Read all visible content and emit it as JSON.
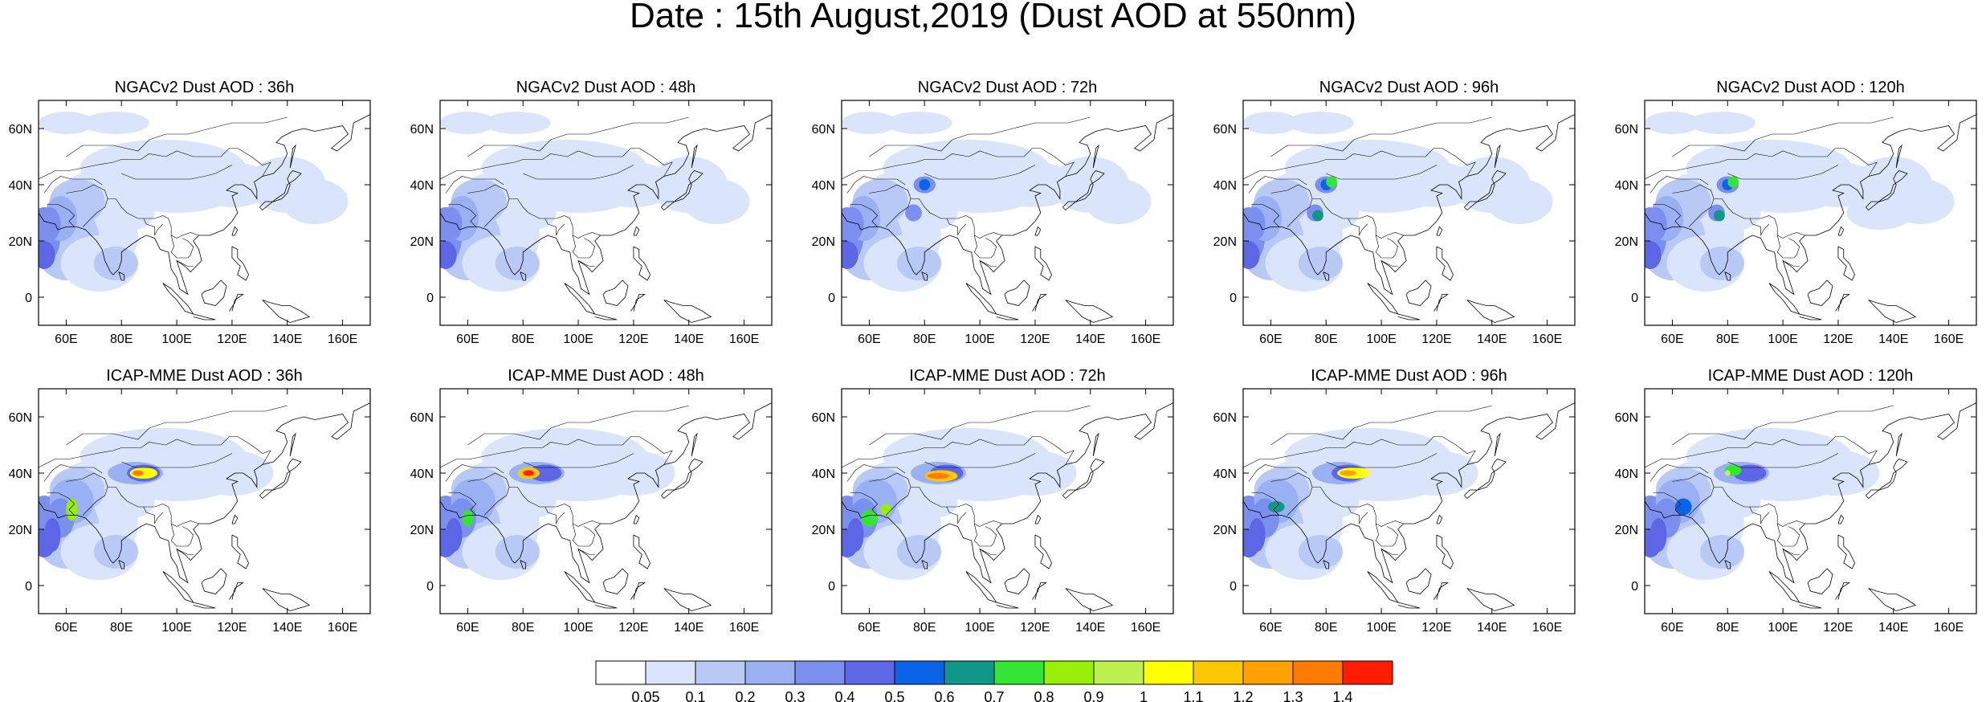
{
  "title": "Date : 15th August,2019 (Dust AOD at 550nm)",
  "map_axes": {
    "lon_ticks": [
      "60E",
      "80E",
      "100E",
      "120E",
      "140E",
      "160E"
    ],
    "lat_ticks": [
      "60N",
      "40N",
      "20N",
      "0"
    ],
    "lon_values": [
      60,
      80,
      100,
      120,
      140,
      160
    ],
    "lat_values": [
      60,
      40,
      20,
      0
    ],
    "lon_range": [
      50,
      170
    ],
    "lat_range": [
      -10,
      70
    ]
  },
  "panels": [
    {
      "title": "NGACv2 Dust AOD : 36h",
      "model": "ngac",
      "lead": 36
    },
    {
      "title": "NGACv2 Dust AOD : 48h",
      "model": "ngac",
      "lead": 48
    },
    {
      "title": "NGACv2 Dust AOD : 72h",
      "model": "ngac",
      "lead": 72
    },
    {
      "title": "NGACv2 Dust AOD : 96h",
      "model": "ngac",
      "lead": 96
    },
    {
      "title": "NGACv2 Dust AOD : 120h",
      "model": "ngac",
      "lead": 120
    },
    {
      "title": "ICAP-MME Dust AOD : 36h",
      "model": "icap",
      "lead": 36
    },
    {
      "title": "ICAP-MME Dust AOD : 48h",
      "model": "icap",
      "lead": 48
    },
    {
      "title": "ICAP-MME Dust AOD : 72h",
      "model": "icap",
      "lead": 72
    },
    {
      "title": "ICAP-MME Dust AOD : 96h",
      "model": "icap",
      "lead": 96
    },
    {
      "title": "ICAP-MME Dust AOD : 120h",
      "model": "icap",
      "lead": 120
    }
  ],
  "colorbar": {
    "labels": [
      "0.05",
      "0.1",
      "0.2",
      "0.3",
      "0.4",
      "0.5",
      "0.6",
      "0.7",
      "0.8",
      "0.9",
      "1",
      "1.1",
      "1.2",
      "1.3",
      "1.4"
    ],
    "colors": [
      "#ffffff",
      "#dae4fb",
      "#b9c9f6",
      "#99b0f3",
      "#7b90ee",
      "#5d67e6",
      "#0b63e8",
      "#119789",
      "#34e534",
      "#97ef08",
      "#bef04f",
      "#ffff00",
      "#ffc700",
      "#ffa100",
      "#ff7a00",
      "#ff1c00"
    ]
  }
}
